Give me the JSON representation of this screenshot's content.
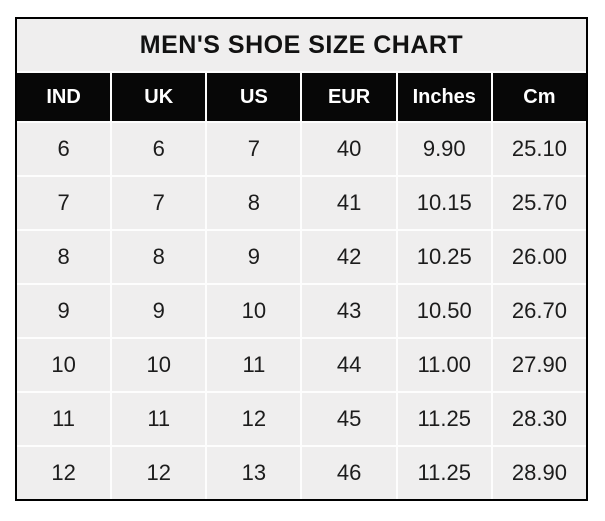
{
  "chart_data": {
    "type": "table",
    "title": "MEN'S SHOE SIZE CHART",
    "columns": [
      "IND",
      "UK",
      "US",
      "EUR",
      "Inches",
      "Cm"
    ],
    "rows": [
      [
        "6",
        "6",
        "7",
        "40",
        "9.90",
        "25.10"
      ],
      [
        "7",
        "7",
        "8",
        "41",
        "10.15",
        "25.70"
      ],
      [
        "8",
        "8",
        "9",
        "42",
        "10.25",
        "26.00"
      ],
      [
        "9",
        "9",
        "10",
        "43",
        "10.50",
        "26.70"
      ],
      [
        "10",
        "10",
        "11",
        "44",
        "11.00",
        "27.90"
      ],
      [
        "11",
        "11",
        "12",
        "45",
        "11.25",
        "28.30"
      ],
      [
        "12",
        "12",
        "13",
        "46",
        "11.25",
        "28.90"
      ]
    ]
  },
  "colors": {
    "header_bg": "#070707",
    "header_text": "#ffffff",
    "cell_bg": "#efeeee",
    "title_bg": "#efeeee",
    "gap": "#fdfdfd",
    "border": "#000000",
    "page_bg": "#ffffff"
  }
}
